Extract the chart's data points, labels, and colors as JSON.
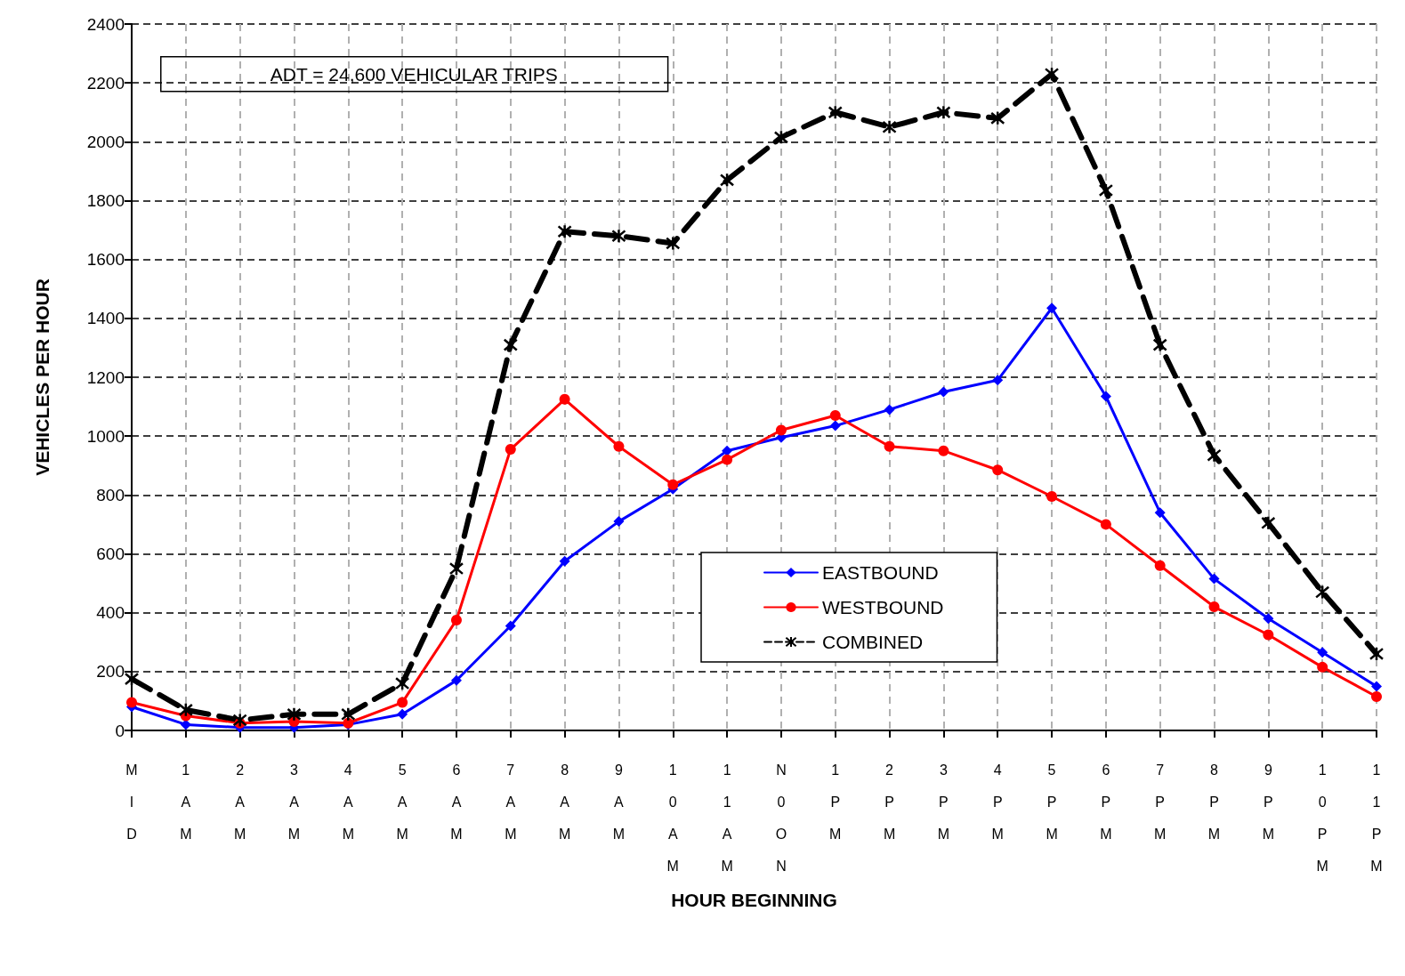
{
  "chart_data": {
    "type": "line",
    "xlabel": "HOUR BEGINNING",
    "ylabel": "VEHICLES PER HOUR",
    "annotations": [
      "ADT = 24,600 VEHICULAR TRIPS"
    ],
    "categories": [
      "MID",
      "1AM",
      "2AM",
      "3AM",
      "4AM",
      "5AM",
      "6AM",
      "7AM",
      "8AM",
      "9AM",
      "10AM",
      "11AM",
      "N0ON",
      "1PM",
      "2PM",
      "3PM",
      "4PM",
      "5PM",
      "6PM",
      "7PM",
      "8PM",
      "9PM",
      "10PM",
      "11PM"
    ],
    "series": [
      {
        "name": "EASTBOUND",
        "color": "#0000ff",
        "marker": "diamond",
        "line_style": "solid",
        "values": [
          80,
          20,
          10,
          10,
          20,
          55,
          170,
          355,
          575,
          710,
          820,
          950,
          995,
          1035,
          1090,
          1150,
          1190,
          1435,
          1135,
          740,
          515,
          380,
          265,
          150
        ]
      },
      {
        "name": "WESTBOUND",
        "color": "#ff0000",
        "marker": "circle",
        "line_style": "solid",
        "values": [
          95,
          50,
          25,
          30,
          25,
          95,
          375,
          955,
          1125,
          965,
          835,
          920,
          1020,
          1070,
          965,
          950,
          885,
          795,
          700,
          560,
          420,
          325,
          215,
          115
        ]
      },
      {
        "name": "COMBINED",
        "color": "#000000",
        "marker": "cross",
        "line_style": "dashed",
        "values": [
          175,
          70,
          35,
          55,
          55,
          160,
          550,
          1310,
          1695,
          1680,
          1655,
          1870,
          2015,
          2100,
          2050,
          2100,
          2080,
          2230,
          1835,
          1310,
          935,
          705,
          470,
          260
        ]
      }
    ],
    "ylim": [
      0,
      2400
    ],
    "yticks": [
      0,
      200,
      400,
      600,
      800,
      1000,
      1200,
      1400,
      1600,
      1800,
      2000,
      2200,
      2400
    ],
    "grid": true,
    "legend": "bottom"
  }
}
